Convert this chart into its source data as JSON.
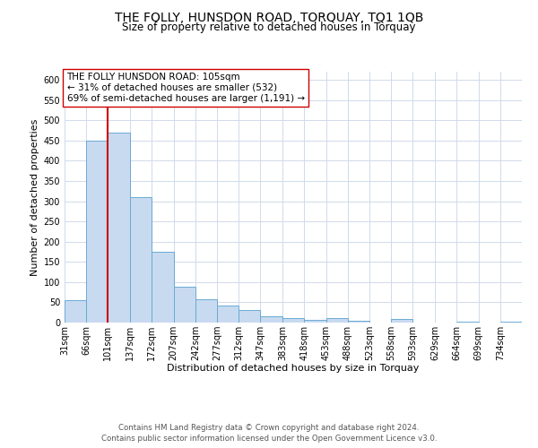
{
  "title": "THE FOLLY, HUNSDON ROAD, TORQUAY, TQ1 1QB",
  "subtitle": "Size of property relative to detached houses in Torquay",
  "xlabel": "Distribution of detached houses by size in Torquay",
  "ylabel": "Number of detached properties",
  "bin_labels": [
    "31sqm",
    "66sqm",
    "101sqm",
    "137sqm",
    "172sqm",
    "207sqm",
    "242sqm",
    "277sqm",
    "312sqm",
    "347sqm",
    "383sqm",
    "418sqm",
    "453sqm",
    "488sqm",
    "523sqm",
    "558sqm",
    "593sqm",
    "629sqm",
    "664sqm",
    "699sqm",
    "734sqm"
  ],
  "bin_left_edges": [
    31,
    66,
    101,
    137,
    172,
    207,
    242,
    277,
    312,
    347,
    383,
    418,
    453,
    488,
    523,
    558,
    593,
    629,
    664,
    699,
    734
  ],
  "bin_width": 35,
  "bar_heights": [
    55,
    450,
    470,
    310,
    175,
    88,
    58,
    43,
    32,
    15,
    10,
    7,
    10,
    5,
    0,
    8,
    0,
    0,
    3,
    0,
    3
  ],
  "bar_color": "#c8daf0",
  "bar_edge_color": "#6aaad4",
  "ylim": [
    0,
    620
  ],
  "yticks": [
    0,
    50,
    100,
    150,
    200,
    250,
    300,
    350,
    400,
    450,
    500,
    550,
    600
  ],
  "vline_x": 101,
  "vline_color": "#cc0000",
  "annotation_text": "THE FOLLY HUNSDON ROAD: 105sqm\n← 31% of detached houses are smaller (532)\n69% of semi-detached houses are larger (1,191) →",
  "annotation_box_color": "#ffffff",
  "annotation_box_edge": "#cc0000",
  "footer_line1": "Contains HM Land Registry data © Crown copyright and database right 2024.",
  "footer_line2": "Contains public sector information licensed under the Open Government Licence v3.0.",
  "bg_color": "#ffffff",
  "grid_color": "#d0daea",
  "title_fontsize": 10,
  "subtitle_fontsize": 8.5,
  "axis_label_fontsize": 8,
  "tick_fontsize": 7,
  "annotation_fontsize": 7.5,
  "footer_fontsize": 6.2
}
